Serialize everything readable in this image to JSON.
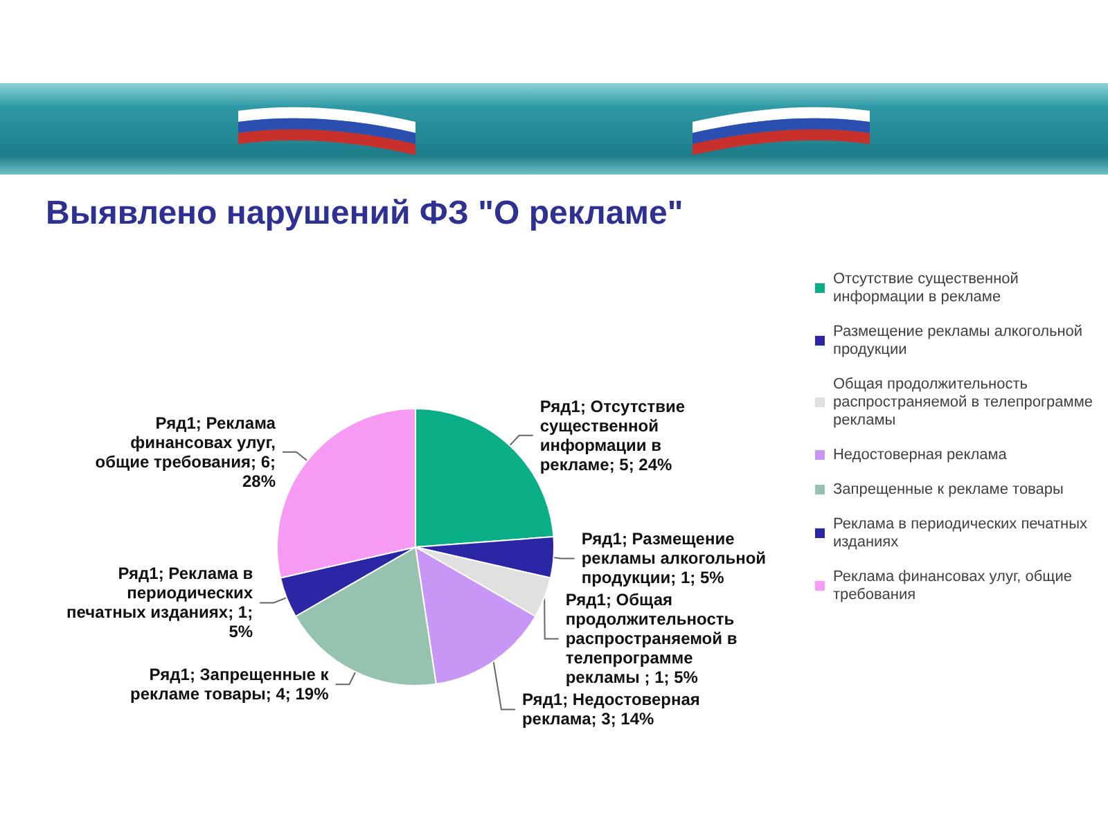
{
  "chart_data": {
    "type": "pie",
    "title": "Выявлено нарушений ФЗ \"О рекламе\"",
    "categories": [
      "Отсутствие существенной информации в рекламе",
      "Размещение рекламы алкогольной продукции",
      "Общая продолжительность распространяемой в телепрограмме рекламы",
      "Недостоверная реклама",
      "Запрещенные к рекламе товары",
      "Реклама в периодических печатных изданиях",
      "Реклама финансовах улуг, общие требования"
    ],
    "values": [
      5,
      1,
      1,
      3,
      4,
      1,
      6
    ],
    "colors": [
      "#0aaf88",
      "#2b26a6",
      "#e0e0e0",
      "#c897f5",
      "#96c2b0",
      "#2b26a6",
      "#f79af3"
    ],
    "value_labels": [
      "Ряд1; Отсутствие существенной информации в рекламе; 5; 24%",
      "Ряд1; Размещение рекламы алкогольной продукции; 1; 5%",
      "Ряд1; Общая продолжительность распространяемой в телепрограмме рекламы ; 1; 5%",
      "Ряд1; Недостоверная реклама; 3; 14%",
      "Ряд1; Запрещенные к рекламе товары; 4; 19%",
      "Ряд1; Реклама в периодических печатных изданиях; 1; 5%",
      "Ряд1; Реклама финансовах улуг, общие требования; 6; 28%"
    ],
    "legend": "right"
  }
}
